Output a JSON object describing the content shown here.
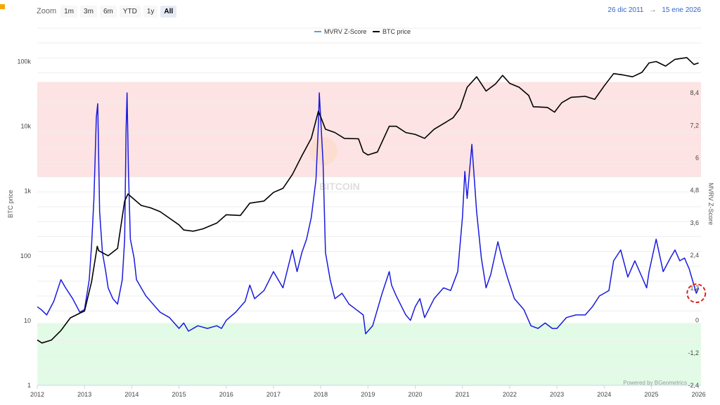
{
  "toolbar": {
    "zoom_label": "Zoom",
    "zoom_buttons": [
      "1m",
      "3m",
      "6m",
      "YTD",
      "1y",
      "All"
    ],
    "active_zoom": "All",
    "range_from": "26 dic 2011",
    "range_arrow": "→",
    "range_to": "15 ene 2026"
  },
  "colors": {
    "zscore_line": "#1a1adf",
    "price_line": "#000000",
    "overvalued_zone": "#fde3e3",
    "undervalued_zone": "#e2fbe6",
    "highlight_circle": "#e02020",
    "legend_zscore_swatch": "#4aa3f0"
  },
  "watermark": {
    "text": "BITCOIN"
  },
  "credit": "Powered by BGeometrics",
  "chart_data": {
    "type": "line",
    "legend": [
      "MVRV Z-Score",
      "BTC price"
    ],
    "legend_placement": "top-center",
    "grid": true,
    "x_axis": {
      "range": [
        2012.0,
        2026.05
      ],
      "ticks": [
        "2012",
        "2013",
        "2014",
        "2015",
        "2016",
        "2017",
        "2018",
        "2019",
        "2020",
        "2021",
        "2022",
        "2023",
        "2024",
        "2025",
        "2026"
      ]
    },
    "y_left": {
      "title": "BTC price",
      "scale": "log",
      "range": [
        1,
        400000
      ],
      "ticks": [
        "1",
        "10",
        "100",
        "1k",
        "10k",
        "100k"
      ]
    },
    "y_right": {
      "title": "MVRV Z-Score",
      "scale": "linear",
      "range": [
        -2.4,
        11.0
      ],
      "ticks": [
        "-2,4",
        "-1,2",
        "0",
        "1,2",
        "2,4",
        "3,6",
        "4,8",
        "6",
        "7,2",
        "8,4"
      ]
    },
    "zones": [
      {
        "name": "overvalued",
        "from": 5.3,
        "to": 8.8
      },
      {
        "name": "undervalued",
        "from": -2.4,
        "to": -0.1
      }
    ],
    "highlight": {
      "x": 2025.95,
      "y": 1.0
    },
    "series": [
      {
        "name": "MVRV Z-Score",
        "axis": "right",
        "x": [
          2012.0,
          2012.08,
          2012.2,
          2012.35,
          2012.5,
          2012.6,
          2012.75,
          2012.9,
          2013.0,
          2013.1,
          2013.15,
          2013.2,
          2013.25,
          2013.28,
          2013.32,
          2013.38,
          2013.45,
          2013.5,
          2013.6,
          2013.7,
          2013.8,
          2013.85,
          2013.88,
          2013.9,
          2013.93,
          2013.97,
          2014.05,
          2014.1,
          2014.2,
          2014.3,
          2014.45,
          2014.6,
          2014.8,
          2015.0,
          2015.1,
          2015.2,
          2015.4,
          2015.6,
          2015.8,
          2015.9,
          2016.0,
          2016.2,
          2016.4,
          2016.5,
          2016.6,
          2016.8,
          2017.0,
          2017.2,
          2017.4,
          2017.5,
          2017.6,
          2017.7,
          2017.8,
          2017.9,
          2017.95,
          2017.97,
          2018.05,
          2018.1,
          2018.2,
          2018.3,
          2018.45,
          2018.6,
          2018.75,
          2018.9,
          2018.95,
          2019.1,
          2019.3,
          2019.45,
          2019.5,
          2019.6,
          2019.8,
          2019.9,
          2020.0,
          2020.1,
          2020.2,
          2020.4,
          2020.6,
          2020.75,
          2020.9,
          2021.0,
          2021.05,
          2021.1,
          2021.2,
          2021.3,
          2021.4,
          2021.5,
          2021.6,
          2021.75,
          2021.85,
          2021.95,
          2022.1,
          2022.3,
          2022.45,
          2022.6,
          2022.75,
          2022.9,
          2023.0,
          2023.2,
          2023.4,
          2023.6,
          2023.75,
          2023.9,
          2024.0,
          2024.1,
          2024.2,
          2024.35,
          2024.5,
          2024.65,
          2024.8,
          2024.9,
          2024.95,
          2025.0,
          2025.1,
          2025.25,
          2025.4,
          2025.5,
          2025.6,
          2025.7,
          2025.8,
          2025.9,
          2025.95,
          2026.0
        ],
        "y": [
          0.5,
          0.4,
          0.2,
          0.7,
          1.5,
          1.2,
          0.8,
          0.3,
          0.4,
          1.5,
          2.8,
          4.5,
          7.5,
          8.0,
          4.0,
          2.5,
          1.8,
          1.2,
          0.8,
          0.6,
          1.5,
          3.0,
          7.0,
          8.4,
          5.5,
          3.0,
          2.3,
          1.5,
          1.2,
          0.9,
          0.6,
          0.3,
          0.1,
          -0.3,
          -0.1,
          -0.4,
          -0.2,
          -0.3,
          -0.2,
          -0.3,
          0.0,
          0.3,
          0.7,
          1.3,
          0.8,
          1.1,
          1.8,
          1.2,
          2.6,
          1.8,
          2.5,
          3.0,
          3.8,
          5.2,
          7.2,
          8.4,
          5.8,
          2.5,
          1.5,
          0.8,
          1.0,
          0.6,
          0.4,
          0.2,
          -0.5,
          -0.2,
          1.0,
          1.8,
          1.3,
          0.9,
          0.2,
          0.0,
          0.5,
          0.8,
          0.1,
          0.8,
          1.2,
          1.1,
          1.8,
          3.8,
          5.5,
          4.5,
          6.5,
          4.0,
          2.3,
          1.2,
          1.7,
          2.9,
          2.2,
          1.6,
          0.8,
          0.4,
          -0.2,
          -0.3,
          -0.1,
          -0.3,
          -0.3,
          0.1,
          0.2,
          0.2,
          0.5,
          0.9,
          1.0,
          1.1,
          2.2,
          2.6,
          1.6,
          2.2,
          1.6,
          1.2,
          1.8,
          2.2,
          3.0,
          1.8,
          2.3,
          2.6,
          2.2,
          2.3,
          1.9,
          1.3,
          1.0,
          1.2
        ]
      },
      {
        "name": "BTC price",
        "axis": "left",
        "x": [
          2012.0,
          2012.1,
          2012.3,
          2012.5,
          2012.7,
          2012.9,
          2013.0,
          2013.15,
          2013.27,
          2013.3,
          2013.5,
          2013.7,
          2013.85,
          2013.92,
          2014.0,
          2014.2,
          2014.4,
          2014.6,
          2014.8,
          2015.0,
          2015.1,
          2015.3,
          2015.5,
          2015.8,
          2016.0,
          2016.3,
          2016.5,
          2016.8,
          2017.0,
          2017.2,
          2017.4,
          2017.6,
          2017.8,
          2017.95,
          2018.0,
          2018.1,
          2018.3,
          2018.5,
          2018.8,
          2018.9,
          2019.0,
          2019.2,
          2019.45,
          2019.6,
          2019.8,
          2020.0,
          2020.2,
          2020.4,
          2020.6,
          2020.8,
          2020.95,
          2021.1,
          2021.3,
          2021.5,
          2021.7,
          2021.85,
          2022.0,
          2022.2,
          2022.4,
          2022.5,
          2022.8,
          2022.95,
          2023.1,
          2023.3,
          2023.6,
          2023.8,
          2024.0,
          2024.2,
          2024.4,
          2024.6,
          2024.8,
          2024.95,
          2025.1,
          2025.3,
          2025.5,
          2025.75,
          2025.9,
          2026.0
        ],
        "y": [
          5,
          4.5,
          5,
          7,
          11,
          13,
          14,
          40,
          140,
          120,
          100,
          130,
          700,
          900,
          800,
          600,
          550,
          480,
          380,
          300,
          250,
          240,
          260,
          320,
          430,
          420,
          650,
          700,
          950,
          1100,
          1800,
          3500,
          6500,
          17000,
          14000,
          9000,
          8000,
          6500,
          6400,
          4000,
          3600,
          4000,
          10000,
          10000,
          8000,
          7500,
          6500,
          9000,
          11000,
          13500,
          19000,
          40000,
          58000,
          35000,
          45000,
          61000,
          46000,
          40000,
          30000,
          20000,
          19500,
          16500,
          23000,
          28000,
          29000,
          26000,
          42000,
          65000,
          62000,
          58000,
          68000,
          95000,
          100000,
          85000,
          108000,
          115000,
          90000,
          95000
        ]
      }
    ]
  }
}
